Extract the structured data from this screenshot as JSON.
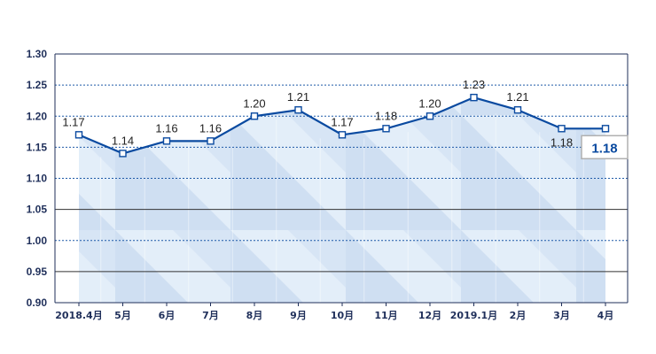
{
  "chart_data": {
    "type": "line",
    "categories": [
      "2018.4月",
      "5月",
      "6月",
      "7月",
      "8月",
      "9月",
      "10月",
      "11月",
      "12月",
      "2019.1月",
      "2月",
      "3月",
      "4月"
    ],
    "series": [
      {
        "values": [
          1.17,
          1.14,
          1.16,
          1.16,
          1.2,
          1.21,
          1.17,
          1.18,
          1.2,
          1.23,
          1.21,
          1.18,
          1.18
        ]
      }
    ],
    "data_labels": [
      "1.17",
      "1.14",
      "1.16",
      "1.16",
      "1.20",
      "1.21",
      "1.17",
      "1.18",
      "1.20",
      "1.23",
      "1.21",
      "1.18",
      "1.18"
    ],
    "y_ticks": [
      "0.90",
      "0.95",
      "1.00",
      "1.05",
      "1.10",
      "1.15",
      "1.20",
      "1.25",
      "1.30"
    ],
    "ylim": [
      0.9,
      1.3
    ],
    "title": "",
    "xlabel": "",
    "ylabel": "",
    "callout_label": "1.18",
    "grid": "horizontal (solid at 0.95 and 1.05, dotted elsewhere)",
    "colors": {
      "line": "#0a4aa0",
      "marker_fill": "#ffffff",
      "axis": "#1f2f5a",
      "grid_solid": "#333333",
      "grid_dotted": "#1f5aa8",
      "area_light": "#dcebf8",
      "area_dark": "#c3d6ef",
      "callout_border": "#b0b0b0"
    }
  }
}
